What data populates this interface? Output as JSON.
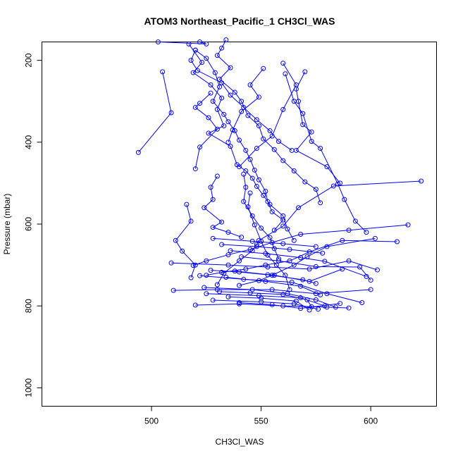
{
  "chart_data": {
    "type": "line",
    "title": "ATOM3 Northeast_Pacific_1 CH3Cl_WAS",
    "xlabel": "CH3Cl_WAS",
    "ylabel": "Pressure (mbar)",
    "xlim": [
      450,
      630
    ],
    "ylim": [
      1045,
      155
    ],
    "y_reversed": true,
    "x_ticks": [
      500,
      550,
      600
    ],
    "y_ticks": [
      200,
      400,
      600,
      800,
      1000
    ],
    "grid": false,
    "legend": "none",
    "series_color": "#0000ff",
    "marker": "open-circle",
    "series": [
      {
        "points": [
          [
            503,
            155
          ],
          [
            525,
            160
          ],
          [
            522,
            155
          ]
        ]
      },
      {
        "points": [
          [
            505,
            228
          ],
          [
            509,
            328
          ],
          [
            494,
            425
          ]
        ]
      },
      {
        "points": [
          [
            517,
            160
          ],
          [
            523,
            205
          ],
          [
            519,
            230
          ],
          [
            527,
            260
          ],
          [
            532,
            292
          ],
          [
            530,
            320
          ],
          [
            533,
            360
          ],
          [
            526,
            378
          ],
          [
            536,
            410
          ],
          [
            539,
            455
          ],
          [
            543,
            470
          ],
          [
            546,
            488
          ],
          [
            548,
            508
          ],
          [
            551,
            530
          ],
          [
            554,
            552
          ],
          [
            560,
            580
          ],
          [
            562,
            612
          ],
          [
            565,
            640
          ]
        ]
      },
      {
        "points": [
          [
            520,
            175
          ],
          [
            525,
            195
          ],
          [
            529,
            230
          ],
          [
            531,
            265
          ],
          [
            528,
            300
          ],
          [
            533,
            332
          ],
          [
            535,
            350
          ],
          [
            538,
            372
          ],
          [
            540,
            395
          ],
          [
            543,
            420
          ],
          [
            545,
            442
          ],
          [
            547,
            468
          ],
          [
            549,
            492
          ],
          [
            552,
            520
          ],
          [
            553,
            545
          ],
          [
            555,
            570
          ],
          [
            560,
            590
          ],
          [
            556,
            615
          ]
        ]
      },
      {
        "points": [
          [
            560,
            207
          ],
          [
            566,
            260
          ],
          [
            560,
            320
          ],
          [
            555,
            385
          ],
          [
            548,
            415
          ],
          [
            540,
            460
          ]
        ]
      },
      {
        "points": [
          [
            561,
            233
          ],
          [
            565,
            300
          ],
          [
            569,
            330
          ],
          [
            573,
            398
          ],
          [
            577,
            415
          ],
          [
            585,
            502
          ],
          [
            588,
            540
          ],
          [
            593,
            593
          ],
          [
            598,
            620
          ]
        ]
      },
      {
        "points": [
          [
            570,
            228
          ],
          [
            566,
            270
          ],
          [
            567,
            300
          ],
          [
            569,
            357
          ],
          [
            573,
            375
          ],
          [
            566,
            420
          ],
          [
            580,
            460
          ],
          [
            586,
            500
          ]
        ]
      },
      {
        "points": [
          [
            551,
            220
          ],
          [
            545,
            260
          ],
          [
            549,
            290
          ],
          [
            541,
            325
          ],
          [
            537,
            370
          ],
          [
            535,
            400
          ]
        ]
      },
      {
        "points": [
          [
            527,
            280
          ],
          [
            522,
            305
          ],
          [
            520,
            315
          ],
          [
            526,
            340
          ],
          [
            530,
            368
          ],
          [
            522,
            412
          ],
          [
            520,
            465
          ]
        ]
      },
      {
        "points": [
          [
            534,
            150
          ],
          [
            532,
            170
          ],
          [
            530,
            188
          ],
          [
            536,
            218
          ],
          [
            531,
            246
          ],
          [
            538,
            278
          ],
          [
            541,
            300
          ],
          [
            544,
            335
          ],
          [
            549,
            360
          ],
          [
            551,
            392
          ],
          [
            556,
            418
          ],
          [
            560,
            445
          ],
          [
            565,
            470
          ],
          [
            570,
            497
          ],
          [
            575,
            515
          ],
          [
            577,
            548
          ]
        ]
      },
      {
        "points": [
          [
            520,
            175
          ],
          [
            518,
            200
          ],
          [
            521,
            225
          ],
          [
            532,
            255
          ],
          [
            536,
            285
          ],
          [
            542,
            315
          ],
          [
            548,
            345
          ],
          [
            554,
            372
          ],
          [
            558,
            398
          ],
          [
            564,
            420
          ]
        ]
      },
      {
        "points": [
          [
            623,
            495
          ],
          [
            583,
            507
          ],
          [
            567,
            560
          ],
          [
            560,
            605
          ],
          [
            549,
            640
          ],
          [
            548,
            650
          ],
          [
            546,
            665
          ],
          [
            540,
            690
          ],
          [
            533,
            720
          ],
          [
            530,
            748
          ]
        ]
      },
      {
        "points": [
          [
            617,
            602
          ],
          [
            590,
            615
          ],
          [
            568,
            625
          ],
          [
            555,
            645
          ],
          [
            545,
            662
          ],
          [
            535,
            675
          ],
          [
            525,
            690
          ],
          [
            519,
            701
          ]
        ]
      },
      {
        "points": [
          [
            612,
            643
          ],
          [
            587,
            640
          ],
          [
            572,
            668
          ],
          [
            563,
            690
          ],
          [
            552,
            700
          ],
          [
            543,
            710
          ],
          [
            532,
            718
          ],
          [
            525,
            725
          ]
        ]
      },
      {
        "points": [
          [
            602,
            635
          ],
          [
            580,
            655
          ],
          [
            571,
            680
          ],
          [
            565,
            700
          ],
          [
            555,
            725
          ],
          [
            549,
            738
          ],
          [
            540,
            750
          ]
        ]
      },
      {
        "points": [
          [
            516,
            552
          ],
          [
            518,
            593
          ],
          [
            511,
            640
          ],
          [
            514,
            666
          ],
          [
            520,
            700
          ],
          [
            518,
            731
          ]
        ]
      },
      {
        "points": [
          [
            530,
            483
          ],
          [
            527,
            510
          ],
          [
            528,
            540
          ],
          [
            524,
            560
          ],
          [
            532,
            595
          ],
          [
            528,
            608
          ],
          [
            535,
            620
          ],
          [
            541,
            632
          ]
        ]
      },
      {
        "points": [
          [
            509,
            695
          ],
          [
            535,
            700
          ],
          [
            553,
            705
          ],
          [
            572,
            710
          ],
          [
            590,
            690
          ],
          [
            603,
            712
          ]
        ]
      },
      {
        "points": [
          [
            510,
            762
          ],
          [
            530,
            760
          ],
          [
            555,
            760
          ],
          [
            575,
            770
          ],
          [
            600,
            760
          ]
        ]
      },
      {
        "points": [
          [
            522,
            726
          ],
          [
            542,
            735
          ],
          [
            564,
            742
          ],
          [
            580,
            770
          ],
          [
            596,
            792
          ]
        ]
      },
      {
        "points": [
          [
            520,
            798
          ],
          [
            540,
            795
          ],
          [
            560,
            800
          ],
          [
            580,
            803
          ],
          [
            590,
            805
          ]
        ]
      },
      {
        "points": [
          [
            524,
            755
          ],
          [
            546,
            760
          ],
          [
            562,
            770
          ],
          [
            575,
            785
          ],
          [
            584,
            803
          ]
        ]
      },
      {
        "points": [
          [
            525,
            770
          ],
          [
            549,
            775
          ],
          [
            568,
            780
          ],
          [
            579,
            800
          ]
        ]
      },
      {
        "points": [
          [
            528,
            786
          ],
          [
            550,
            790
          ],
          [
            565,
            795
          ],
          [
            576,
            808
          ]
        ]
      },
      {
        "points": [
          [
            534,
            730
          ],
          [
            552,
            740
          ],
          [
            568,
            752
          ],
          [
            577,
            773
          ]
        ]
      },
      {
        "points": [
          [
            538,
            715
          ],
          [
            556,
            725
          ],
          [
            572,
            740
          ],
          [
            587,
            710
          ]
        ]
      },
      {
        "points": [
          [
            541,
            680
          ],
          [
            558,
            690
          ],
          [
            575,
            704
          ],
          [
            595,
            705
          ],
          [
            600,
            737
          ]
        ]
      },
      {
        "points": [
          [
            536,
            665
          ],
          [
            552,
            672
          ],
          [
            568,
            682
          ],
          [
            579,
            691
          ],
          [
            598,
            728
          ]
        ]
      },
      {
        "points": [
          [
            532,
            650
          ],
          [
            548,
            655
          ],
          [
            563,
            662
          ],
          [
            578,
            671
          ]
        ]
      },
      {
        "points": [
          [
            528,
            635
          ],
          [
            546,
            642
          ],
          [
            560,
            648
          ],
          [
            575,
            655
          ]
        ]
      },
      {
        "points": [
          [
            531,
            765
          ],
          [
            545,
            768
          ],
          [
            560,
            772
          ],
          [
            571,
            785
          ],
          [
            573,
            802
          ]
        ]
      },
      {
        "points": [
          [
            535,
            778
          ],
          [
            550,
            781
          ],
          [
            566,
            788
          ],
          [
            572,
            810
          ]
        ]
      },
      {
        "points": [
          [
            540,
            792
          ],
          [
            555,
            797
          ],
          [
            568,
            806
          ],
          [
            586,
            794
          ]
        ]
      },
      {
        "points": [
          [
            527,
            713
          ],
          [
            540,
            717
          ],
          [
            553,
            724
          ],
          [
            569,
            736
          ],
          [
            575,
            745
          ]
        ]
      },
      {
        "points": [
          [
            545,
            524
          ],
          [
            544,
            558
          ],
          [
            547,
            602
          ],
          [
            550,
            642
          ],
          [
            553,
            676
          ],
          [
            557,
            700
          ],
          [
            561,
            725
          ],
          [
            563,
            760
          ]
        ]
      },
      {
        "points": [
          [
            542,
            478
          ],
          [
            543,
            510
          ],
          [
            542,
            545
          ],
          [
            546,
            580
          ],
          [
            550,
            610
          ],
          [
            554,
            633
          ],
          [
            556,
            660
          ],
          [
            558,
            685
          ]
        ]
      }
    ]
  }
}
